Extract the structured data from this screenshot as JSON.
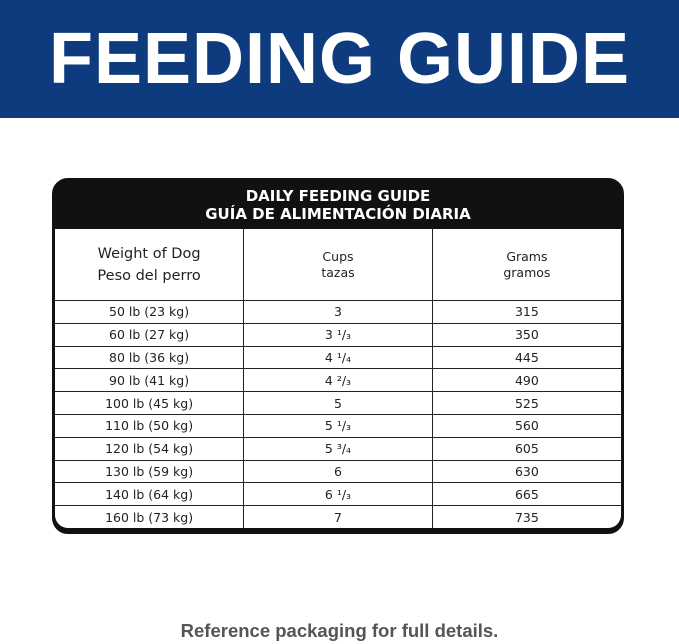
{
  "header": {
    "title": "FEEDING GUIDE"
  },
  "table": {
    "title": [
      "DAILY FEEDING GUIDE",
      "GUÍA DE ALIMENTACIÓN DIARIA"
    ],
    "columns": [
      [
        "Weight of Dog",
        "Peso del perro"
      ],
      [
        "Cups",
        "tazas"
      ],
      [
        "Grams",
        "gramos"
      ]
    ],
    "rows": [
      [
        "50 lb (23 kg)",
        "3",
        "315"
      ],
      [
        "60 lb (27 kg)",
        "3 ¹/₃",
        "350"
      ],
      [
        "80 lb (36 kg)",
        "4 ¹/₄",
        "445"
      ],
      [
        "90 lb (41 kg)",
        "4 ²/₃",
        "490"
      ],
      [
        "100 lb (45 kg)",
        "5",
        "525"
      ],
      [
        "110 lb (50 kg)",
        "5 ¹/₃",
        "560"
      ],
      [
        "120 lb (54 kg)",
        "5 ³/₄",
        "605"
      ],
      [
        "130 lb (59 kg)",
        "6",
        "630"
      ],
      [
        "140 lb (64 kg)",
        "6 ¹/₃",
        "665"
      ],
      [
        "160 lb (73 kg)",
        "7",
        "735"
      ]
    ]
  },
  "footer": {
    "note": "Reference packaging for full details."
  }
}
